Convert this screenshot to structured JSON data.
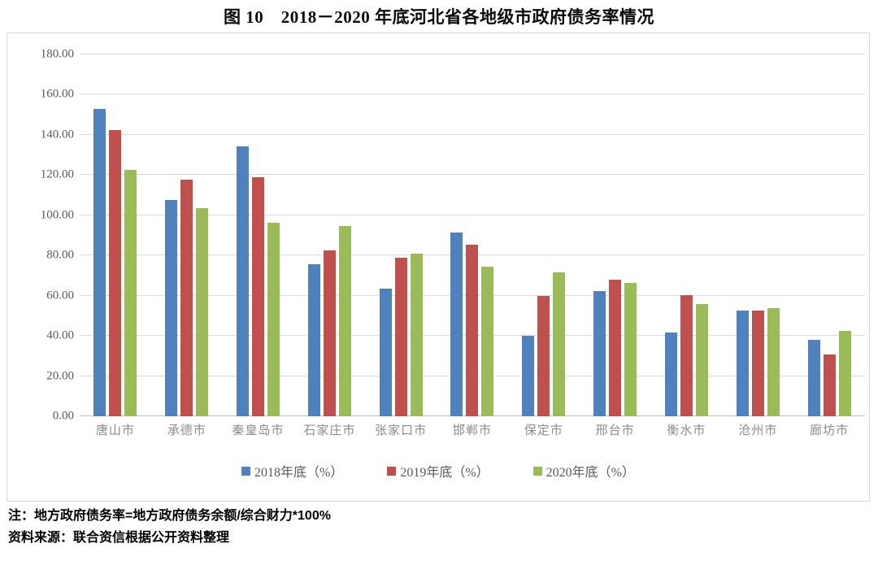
{
  "title": "图 10　2018－2020 年底河北省各地级市政府债务率情况",
  "notes": [
    "注：地方政府债务率=地方政府债务余额/综合财力*100%",
    "资料来源：联合资信根据公开资料整理"
  ],
  "chart_data": {
    "type": "bar",
    "title": "图 10　2018－2020 年底河北省各地级市政府债务率情况",
    "categories": [
      "唐山市",
      "承德市",
      "秦皇岛市",
      "石家庄市",
      "张家口市",
      "邯郸市",
      "保定市",
      "邢台市",
      "衡水市",
      "沧州市",
      "廊坊市"
    ],
    "series": [
      {
        "name": "2018年底（%）",
        "color": "#4F81BD",
        "values": [
          153.0,
          107.7,
          134.5,
          75.6,
          63.4,
          91.3,
          40.0,
          62.4,
          41.5,
          52.6,
          38.2
        ]
      },
      {
        "name": "2019年底（%）",
        "color": "#C0504D",
        "values": [
          142.4,
          117.9,
          118.8,
          82.4,
          78.8,
          85.4,
          60.0,
          68.0,
          60.3,
          52.6,
          30.8
        ]
      },
      {
        "name": "2020年底（%）",
        "color": "#9BBB59",
        "values": [
          122.4,
          103.4,
          96.4,
          94.6,
          81.0,
          74.3,
          71.7,
          66.4,
          55.8,
          53.9,
          42.6
        ]
      }
    ],
    "xlabel": "",
    "ylabel": "",
    "ylim": [
      0,
      180
    ],
    "ytick_step": 20,
    "ytick_format_decimals": 2,
    "grid": true,
    "legend_position": "bottom",
    "axis_text_color": "#595959",
    "category_text_color": "#8c8c8c",
    "gridline_color": "#dcdcdc"
  }
}
